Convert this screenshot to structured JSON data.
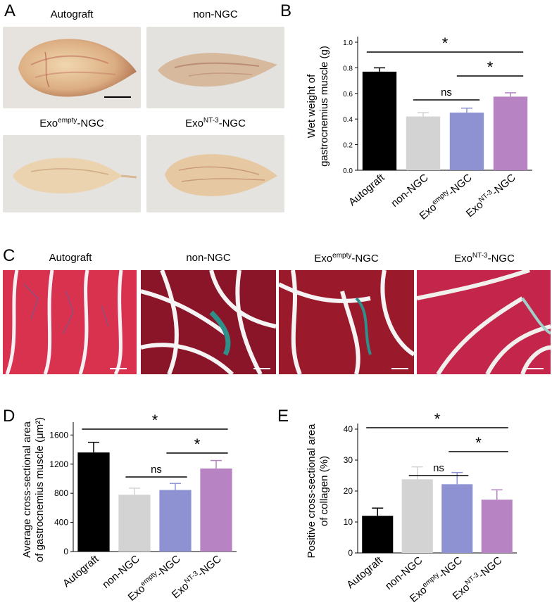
{
  "panel_letters": {
    "a": "A",
    "b": "B",
    "c": "C",
    "d": "D",
    "e": "E"
  },
  "photos": {
    "p1": {
      "label": "Autograft"
    },
    "p2": {
      "label": "non-NGC"
    },
    "p3": {
      "label_main": "Exo",
      "label_sup": "empty",
      "label_tail": "-NGC"
    },
    "p4": {
      "label_main": "Exo",
      "label_sup": "NT-3",
      "label_tail": "-NGC"
    }
  },
  "histology": {
    "h1": {
      "label": "Autograft"
    },
    "h2": {
      "label": "non-NGC"
    },
    "h3": {
      "label_main": "Exo",
      "label_sup": "empty",
      "label_tail": "-NGC"
    },
    "h4": {
      "label_main": "Exo",
      "label_sup": "NT-3",
      "label_tail": "-NGC"
    }
  },
  "colors": {
    "autograft": "#000000",
    "non_ngc": "#d3d3d3",
    "exo_empty": "#8e92d2",
    "exo_nt3": "#b783c3",
    "sirius_red": "#c8284a",
    "collagen": "#2f8f8a"
  },
  "chart_data": [
    {
      "id": "B",
      "type": "bar",
      "categories": [
        "Autograft",
        "non-NGC",
        "Exo^empty-NGC",
        "Exo^NT-3-NGC"
      ],
      "values": [
        0.77,
        0.42,
        0.45,
        0.575
      ],
      "errors": [
        0.03,
        0.03,
        0.035,
        0.03
      ],
      "ylabel_line1": "Wet weight of",
      "ylabel_line2": "gastrocnemius muscle (g)",
      "ylim": [
        0,
        1.0
      ],
      "yticks": [
        "0.0",
        "0.2",
        "0.4",
        "0.6",
        "0.8",
        "1.0"
      ],
      "comparisons": [
        {
          "from": 0,
          "to": 3,
          "label": "*"
        },
        {
          "from": 2,
          "to": 3,
          "label": "*"
        },
        {
          "from": 1,
          "to": 2,
          "label": "ns"
        }
      ]
    },
    {
      "id": "D",
      "type": "bar",
      "categories": [
        "Autograft",
        "non-NGC",
        "Exo^empty-NGC",
        "Exo^NT-3-NGC"
      ],
      "values": [
        1360,
        780,
        845,
        1140
      ],
      "errors": [
        140,
        90,
        90,
        110
      ],
      "ylabel_line1": "Average cross-sectional area",
      "ylabel_line2": "of gastrocnemius muscle (μm²)",
      "ylim": [
        0,
        1700
      ],
      "yticks": [
        "0",
        "400",
        "800",
        "1200",
        "1600"
      ],
      "comparisons": [
        {
          "from": 0,
          "to": 3,
          "label": "*"
        },
        {
          "from": 2,
          "to": 3,
          "label": "*"
        },
        {
          "from": 1,
          "to": 2,
          "label": "ns"
        }
      ]
    },
    {
      "id": "E",
      "type": "bar",
      "categories": [
        "Autograft",
        "non-NGC",
        "Exo^empty-NGC",
        "Exo^NT-3-NGC"
      ],
      "values": [
        12,
        23.8,
        22.2,
        17.2
      ],
      "errors": [
        2.5,
        4.0,
        3.8,
        3.2
      ],
      "ylabel_line1": "Positive cross-sectional area",
      "ylabel_line2": "of collagen (%)",
      "ylim": [
        0,
        40
      ],
      "yticks": [
        "0",
        "10",
        "20",
        "30",
        "40"
      ],
      "comparisons": [
        {
          "from": 0,
          "to": 3,
          "label": "*"
        },
        {
          "from": 2,
          "to": 3,
          "label": "*"
        },
        {
          "from": 1,
          "to": 2,
          "label": "ns"
        }
      ]
    }
  ]
}
